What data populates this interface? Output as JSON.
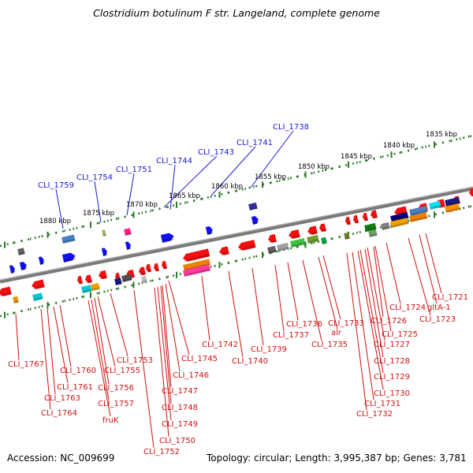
{
  "title": "Clostridium botulinum F str. Langeland, complete genome",
  "accession": "Accession: NC_009699",
  "topology": "Topology: circular; Length: 3,995,387 bp; Genes: 3,781",
  "colors": {
    "forward_label": "#1a1ad0",
    "reverse_label": "#d01010",
    "ruler_tick": "#2a7a2a",
    "backbone": "#808080"
  },
  "kbp_ticks": [
    "1835 kbp",
    "1840 kbp",
    "1845 kbp",
    "1850 kbp",
    "1855 kbp",
    "1860 kbp",
    "1865 kbp",
    "1870 kbp",
    "1875 kbp",
    "1880 kbp"
  ],
  "top_labels": [
    "CLI_1738",
    "CLI_1741",
    "CLI_1743",
    "CLI_1744",
    "CLI_1751",
    "CLI_1754",
    "CLI_1759"
  ],
  "bottom_labels": [
    "CLI_1721",
    "gltA-1",
    "CLI_1723",
    "CLI_1724",
    "CLI_1725",
    "CLI_1726",
    "CLI_1727",
    "CLI_1728",
    "CLI_1729",
    "CLI_1730",
    "CLI_1731",
    "CLI_1732",
    "CLI_1733",
    "alr",
    "CLI_1735",
    "CLI_1736",
    "CLI_1737",
    "CLI_1739",
    "CLI_1740",
    "CLI_1742",
    "CLI_1745",
    "CLI_1746",
    "CLI_1747",
    "CLI_1748",
    "CLI_1749",
    "CLI_1750",
    "CLI_1752",
    "CLI_1753",
    "CLI_1755",
    "CLI_1756",
    "CLI_1757",
    "fruK",
    "CLI_1760",
    "CLI_1761",
    "CLI_1763",
    "CLI_1764",
    "CLI_1767"
  ]
}
